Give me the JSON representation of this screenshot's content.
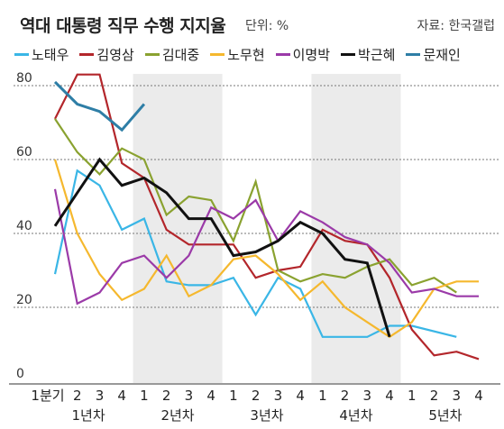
{
  "chart_data": {
    "type": "line",
    "title": "역대 대통령 직무 수행 지지율",
    "unit_label": "단위: %",
    "source": "자료: 한국갤럽",
    "ylim": [
      0,
      85
    ],
    "y_ticks": [
      0,
      20,
      40,
      60,
      80
    ],
    "quarter_labels": [
      "1분기",
      "2",
      "3",
      "4",
      "1",
      "2",
      "3",
      "4",
      "1",
      "2",
      "3",
      "4",
      "1",
      "2",
      "3",
      "4",
      "1",
      "2",
      "3",
      "4"
    ],
    "year_labels": [
      "1년차",
      "2년차",
      "3년차",
      "4년차",
      "5년차"
    ],
    "x": [
      1,
      2,
      3,
      4,
      5,
      6,
      7,
      8,
      9,
      10,
      11,
      12,
      13,
      14,
      15,
      16,
      17,
      18,
      19,
      20
    ],
    "series": [
      {
        "name": "노태우",
        "color": "#3ab6e6",
        "values": [
          29,
          57,
          53,
          41,
          44,
          27,
          26,
          26,
          28,
          18,
          28,
          25,
          12,
          12,
          12,
          15,
          15,
          null,
          null,
          null
        ],
        "extra": {
          "x": 19,
          "y": 12
        }
      },
      {
        "name": "김영삼",
        "color": "#b3262b",
        "values": [
          71,
          83,
          83,
          59,
          55,
          41,
          37,
          37,
          37,
          28,
          30,
          31,
          41,
          38,
          37,
          28,
          14,
          7,
          8,
          6
        ]
      },
      {
        "name": "김대중",
        "color": "#8aa230",
        "values": [
          71,
          62,
          56,
          63,
          60,
          45,
          50,
          49,
          38,
          54,
          30,
          27,
          29,
          28,
          31,
          33,
          26,
          28,
          24,
          null
        ]
      },
      {
        "name": "노무현",
        "color": "#f5b82e",
        "values": [
          60,
          40,
          29,
          22,
          25,
          34,
          23,
          26,
          33,
          34,
          29,
          22,
          27,
          20,
          16,
          12,
          16,
          25,
          27,
          27
        ]
      },
      {
        "name": "이명박",
        "color": "#9b3aa8",
        "values": [
          52,
          21,
          24,
          32,
          34,
          28,
          34,
          47,
          44,
          49,
          38,
          46,
          43,
          39,
          37,
          32,
          24,
          25,
          23,
          23
        ]
      },
      {
        "name": "박근혜",
        "color": "#111111",
        "values": [
          42,
          51,
          60,
          53,
          55,
          51,
          44,
          44,
          34,
          35,
          38,
          43,
          40,
          33,
          32,
          12,
          null,
          null,
          null,
          null
        ]
      },
      {
        "name": "문재인",
        "color": "#2e7ea6",
        "values": [
          81,
          75,
          73,
          68,
          75,
          null,
          null,
          null,
          null,
          null,
          null,
          null,
          null,
          null,
          null,
          null,
          null,
          null,
          null,
          null
        ]
      }
    ]
  }
}
